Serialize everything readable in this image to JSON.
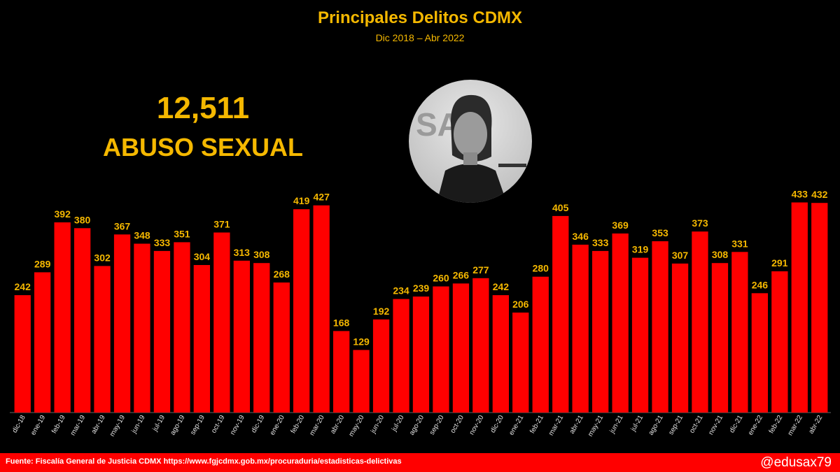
{
  "chart_data": {
    "type": "bar",
    "title": "Principales Delitos CDMX",
    "subtitle": "Dic 2018 – Abr 2022",
    "categories": [
      "dic-18",
      "ene-19",
      "feb-19",
      "mar-19",
      "abr-19",
      "may-19",
      "jun-19",
      "jul-19",
      "ago-19",
      "sep-19",
      "oct-19",
      "nov-19",
      "dic-19",
      "ene-20",
      "feb-20",
      "mar-20",
      "abr-20",
      "may-20",
      "jun-20",
      "jul-20",
      "ago-20",
      "sep-20",
      "oct-20",
      "nov-20",
      "dic-20",
      "ene-21",
      "feb-21",
      "mar-21",
      "abr-21",
      "may-21",
      "jun-21",
      "jul-21",
      "ago-21",
      "sep-21",
      "oct-21",
      "nov-21",
      "dic-21",
      "ene-22",
      "feb-22",
      "mar-22",
      "abr-22"
    ],
    "values": [
      242,
      289,
      392,
      380,
      302,
      367,
      348,
      333,
      351,
      304,
      371,
      313,
      308,
      268,
      419,
      427,
      168,
      129,
      192,
      234,
      239,
      260,
      266,
      277,
      242,
      206,
      280,
      405,
      346,
      333,
      369,
      319,
      353,
      307,
      373,
      308,
      331,
      246,
      291,
      433,
      432
    ],
    "bar_color": "#ff0000",
    "label_color": "#f5b800",
    "ylim": [
      0,
      480
    ],
    "grid": false,
    "legend": "none"
  },
  "highlight": {
    "total": "12,511",
    "label": "ABUSO SEXUAL"
  },
  "photo": {
    "icon": "portrait-photo"
  },
  "footer": {
    "source": "Fuente: Fiscalía General de Justicia CDMX https://www.fgjcdmx.gob.mx/procuraduria/estadisticas-delictivas",
    "handle": "@edusax79"
  }
}
